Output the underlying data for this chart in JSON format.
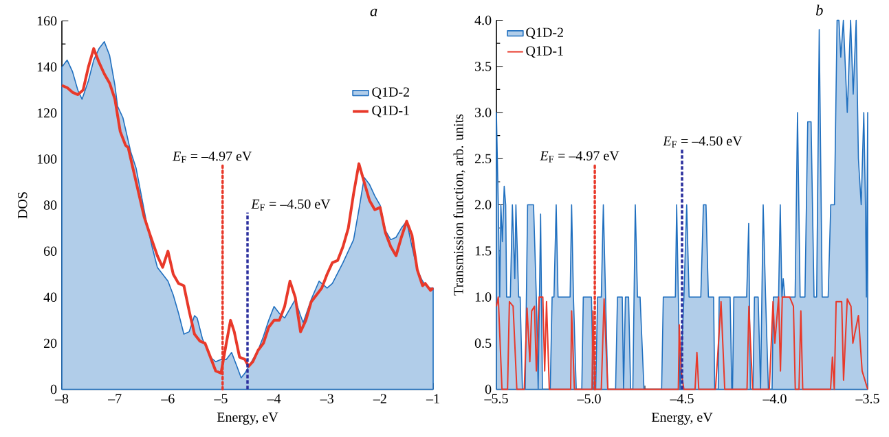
{
  "chart_data": [
    {
      "type": "line",
      "xlabel": "Energy, eV",
      "ylabel": "DOS",
      "annotations": [
        "a"
      ],
      "legend": "top right",
      "xlim": [
        -8,
        -1
      ],
      "ylim": [
        0,
        160
      ],
      "xticks": [
        {
          "value": -8,
          "label": "–8"
        },
        {
          "value": -7,
          "label": "–7"
        },
        {
          "value": -6,
          "label": "–6"
        },
        {
          "value": -5,
          "label": "–5"
        },
        {
          "value": -4,
          "label": "–4"
        },
        {
          "value": -3,
          "label": "–3"
        },
        {
          "value": -2,
          "label": "–2"
        },
        {
          "value": -1,
          "label": "–1"
        }
      ],
      "yticks": [
        0,
        20,
        40,
        60,
        80,
        100,
        120,
        140,
        160
      ],
      "series": [
        {
          "name": "Q1D-2",
          "type": "area",
          "color": "#1f6fbf",
          "x": [
            -8,
            -7.9,
            -7.8,
            -7.7,
            -7.62,
            -7.5,
            -7.4,
            -7.3,
            -7.2,
            -7.1,
            -7,
            -6.95,
            -6.85,
            -6.7,
            -6.6,
            -6.5,
            -6.4,
            -6.3,
            -6.2,
            -6.0,
            -5.9,
            -5.8,
            -5.7,
            -5.6,
            -5.5,
            -5.45,
            -5.35,
            -5.2,
            -5.1,
            -5.0,
            -4.9,
            -4.8,
            -4.7,
            -4.62,
            -4.55,
            -4.45,
            -4.3,
            -4.2,
            -4.1,
            -4.0,
            -3.9,
            -3.8,
            -3.7,
            -3.6,
            -3.5,
            -3.45,
            -3.3,
            -3.15,
            -3.0,
            -2.9,
            -2.7,
            -2.6,
            -2.5,
            -2.4,
            -2.3,
            -2.2,
            -2.1,
            -2.0,
            -1.9,
            -1.8,
            -1.7,
            -1.6,
            -1.5,
            -1.4,
            -1.3,
            -1.2,
            -1.1,
            -1.0
          ],
          "values": [
            140,
            143,
            138,
            130,
            126,
            134,
            143,
            148,
            151,
            145,
            132,
            123,
            118,
            103,
            96,
            84,
            72,
            62,
            53,
            47,
            41,
            33,
            24,
            25,
            32,
            31,
            22,
            14,
            12,
            13,
            13,
            16,
            10,
            5,
            7,
            11,
            17,
            23,
            30,
            36,
            33,
            31,
            35,
            39,
            32,
            29,
            39,
            47,
            44,
            46,
            55,
            60,
            65,
            78,
            92,
            89,
            84,
            80,
            69,
            65,
            66,
            70,
            73,
            62,
            52,
            47,
            44,
            44
          ]
        },
        {
          "name": "Q1D-1",
          "type": "line",
          "color": "#e8392a",
          "x": [
            -8,
            -7.9,
            -7.8,
            -7.7,
            -7.6,
            -7.5,
            -7.4,
            -7.3,
            -7.2,
            -7.1,
            -7.0,
            -6.9,
            -6.8,
            -6.75,
            -6.65,
            -6.55,
            -6.45,
            -6.35,
            -6.2,
            -6.1,
            -6.0,
            -5.9,
            -5.8,
            -5.7,
            -5.6,
            -5.5,
            -5.4,
            -5.3,
            -5.2,
            -5.1,
            -5.0,
            -4.9,
            -4.82,
            -4.75,
            -4.65,
            -4.55,
            -4.48,
            -4.4,
            -4.3,
            -4.2,
            -4.1,
            -4.0,
            -3.9,
            -3.8,
            -3.7,
            -3.6,
            -3.5,
            -3.4,
            -3.3,
            -3.2,
            -3.1,
            -3.0,
            -2.9,
            -2.8,
            -2.7,
            -2.6,
            -2.5,
            -2.4,
            -2.3,
            -2.2,
            -2.1,
            -2.0,
            -1.9,
            -1.8,
            -1.7,
            -1.6,
            -1.5,
            -1.4,
            -1.3,
            -1.2,
            -1.15,
            -1.05,
            -1.0
          ],
          "values": [
            132,
            131,
            129,
            128,
            130,
            140,
            148,
            142,
            137,
            133,
            126,
            112,
            106,
            105,
            95,
            85,
            75,
            68,
            58,
            53,
            60,
            50,
            46,
            45,
            34,
            24,
            21,
            20,
            14,
            8,
            7,
            20,
            30,
            25,
            14,
            13,
            10,
            12,
            17,
            20,
            27,
            30,
            30,
            36,
            47,
            40,
            25,
            30,
            38,
            41,
            44,
            50,
            55,
            56,
            62,
            70,
            85,
            98,
            90,
            82,
            78,
            79,
            68,
            62,
            58,
            66,
            73,
            67,
            52,
            45,
            46,
            43,
            44
          ]
        }
      ],
      "ref_lines": [
        {
          "axis": "x",
          "value": -4.97,
          "label": "*E*$_{F}$ = –4.97 eV",
          "color": "#e8392a",
          "line_style": "dotted"
        },
        {
          "axis": "x",
          "value": -4.5,
          "label": "*E*$_{F}$ = –4.50 eV",
          "color": "#2b2f9e",
          "line_style": "dashed"
        }
      ]
    },
    {
      "type": "line",
      "xlabel": "Energy, eV",
      "ylabel": "Transmission function, arb. units",
      "annotations": [
        "b"
      ],
      "legend": "top left",
      "xlim": [
        -5.5,
        -3.5
      ],
      "ylim": [
        0,
        4
      ],
      "xticks": [
        {
          "value": -5.5,
          "label": "–5.5"
        },
        {
          "value": -5.0,
          "label": "–5.0"
        },
        {
          "value": -4.5,
          "label": "–4.5"
        },
        {
          "value": -4.0,
          "label": "–4.0"
        },
        {
          "value": -3.5,
          "label": "–3.5"
        }
      ],
      "yticks": [
        0,
        0.5,
        {
          "value": 1,
          "label": "1.0"
        },
        1.5,
        {
          "value": 2,
          "label": "2.0"
        },
        2.5,
        {
          "value": 3,
          "label": "3.0"
        },
        3.5,
        {
          "value": 4,
          "label": "4.0"
        }
      ],
      "series": [
        {
          "name": "Q1D-2",
          "type": "area",
          "color": "#1f6fbf",
          "x": [
            -5.5,
            -5.49,
            -5.482,
            -5.476,
            -5.468,
            -5.458,
            -5.45,
            -5.445,
            -5.425,
            -5.414,
            -5.401,
            -5.395,
            -5.38,
            -5.372,
            -5.36,
            -5.345,
            -5.332,
            -5.3,
            -5.285,
            -5.275,
            -5.262,
            -5.252,
            -5.21,
            -5.2,
            -5.19,
            -5.178,
            -5.168,
            -5.103,
            -5.095,
            -5.085,
            -5.07,
            -5.04,
            -5.032,
            -4.988,
            -4.978,
            -4.965,
            -4.955,
            -4.935,
            -4.924,
            -4.912,
            -4.9,
            -4.858,
            -4.848,
            -4.822,
            -4.815,
            -4.805,
            -4.788,
            -4.777,
            -4.765,
            -4.752,
            -4.74,
            -4.726,
            -4.705,
            -4.61,
            -4.601,
            -4.536,
            -4.529,
            -4.52,
            -4.511,
            -4.49,
            -4.475,
            -4.462,
            -4.399,
            -4.385,
            -4.371,
            -4.358,
            -4.33,
            -4.324,
            -4.305,
            -4.3,
            -4.241,
            -4.232,
            -4.228,
            -4.221,
            -4.152,
            -4.141,
            -4.132,
            -4.118,
            -4.11,
            -4.09,
            -4.077,
            -4.063,
            -4.05,
            -4.035,
            -4.015,
            -4.008,
            -3.98,
            -3.971,
            -3.962,
            -3.955,
            -3.946,
            -3.891,
            -3.878,
            -3.864,
            -3.838,
            -3.823,
            -3.805,
            -3.789,
            -3.775,
            -3.761,
            -3.745,
            -3.713,
            -3.699,
            -3.679,
            -3.665,
            -3.655,
            -3.645,
            -3.631,
            -3.61,
            -3.592,
            -3.578,
            -3.562,
            -3.55,
            -3.535,
            -3.521,
            -3.512,
            -3.507,
            -3.5
          ],
          "values": [
            3.0,
            2.0,
            1.0,
            2.0,
            1.6,
            2.2,
            2.0,
            1.0,
            1.0,
            2.0,
            1.2,
            2.0,
            1.0,
            1.0,
            0,
            0,
            2.0,
            2.0,
            1.0,
            0,
            1.9,
            0,
            0,
            1.0,
            1.0,
            2.0,
            1.0,
            1.0,
            2.0,
            1.0,
            0,
            0,
            1.0,
            1.0,
            0,
            0,
            1.0,
            1.0,
            2.0,
            1.0,
            0,
            0,
            1.0,
            1.0,
            0,
            1.0,
            1.0,
            0,
            0,
            2.0,
            1.0,
            1.0,
            0,
            0,
            1.0,
            1.0,
            2.0,
            1.0,
            0,
            1.0,
            2.0,
            1.0,
            1.0,
            2.0,
            2.0,
            1.0,
            1.0,
            0,
            0,
            1.0,
            1.0,
            0,
            0,
            1.0,
            1.0,
            1.8,
            0,
            0,
            1.0,
            1.0,
            0,
            2.0,
            1.0,
            0,
            0,
            1.0,
            1.0,
            2.0,
            1.0,
            1.2,
            1.0,
            1.0,
            3.0,
            1.0,
            1.0,
            2.9,
            2.9,
            1.0,
            1.0,
            3.9,
            1.0,
            1.0,
            2.0,
            2.0,
            4.0,
            4.0,
            3.6,
            4.0,
            3.0,
            4.0,
            3.2,
            4.0,
            2.5,
            2.0,
            3.0,
            2.0,
            1.0,
            3.0
          ]
        },
        {
          "name": "Q1D-1",
          "type": "line",
          "color": "#e8392a",
          "x": [
            -5.5,
            -5.49,
            -5.48,
            -5.47,
            -5.44,
            -5.43,
            -5.41,
            -5.39,
            -5.35,
            -5.335,
            -5.32,
            -5.31,
            -5.295,
            -5.285,
            -5.27,
            -5.25,
            -5.24,
            -5.23,
            -5.215,
            -5.1,
            -5.095,
            -5.08,
            -4.985,
            -4.98,
            -4.97,
            -4.935,
            -4.92,
            -4.9,
            -4.52,
            -4.515,
            -4.505,
            -4.49,
            -4.43,
            -4.42,
            -4.41,
            -4.32,
            -4.31,
            -4.29,
            -4.27,
            -4.15,
            -4.14,
            -4.12,
            -4.03,
            -4.01,
            -4.0,
            -3.98,
            -3.97,
            -3.96,
            -3.92,
            -3.9,
            -3.89,
            -3.87,
            -3.86,
            -3.85,
            -3.7,
            -3.69,
            -3.68,
            -3.67,
            -3.64,
            -3.63,
            -3.61,
            -3.59,
            -3.58,
            -3.55,
            -3.53,
            -3.5
          ],
          "values": [
            0.9,
            1.0,
            0.5,
            0,
            0,
            0.95,
            0.9,
            0,
            0,
            0.88,
            0.3,
            0.85,
            0.9,
            0.2,
            1.0,
            1.0,
            0.2,
            0.95,
            0,
            0,
            0.85,
            0,
            0,
            0.85,
            0,
            0,
            0.98,
            0,
            0,
            0.7,
            0.2,
            0,
            0,
            0.4,
            0,
            0,
            0.3,
            0.95,
            0,
            0,
            0.9,
            0,
            0,
            0.95,
            0.5,
            1.0,
            0.2,
            1.0,
            1.0,
            0.9,
            0,
            0,
            0.85,
            0,
            0,
            0.35,
            0,
            0.95,
            0.95,
            0.1,
            0.98,
            0.9,
            0.5,
            0.8,
            0.2,
            0
          ]
        }
      ],
      "ref_lines": [
        {
          "axis": "x",
          "value": -4.97,
          "label": "*E*$_{F}$ = –4.97 eV",
          "color": "#e8392a",
          "line_style": "dotted"
        },
        {
          "axis": "x",
          "value": -4.5,
          "label": "*E*$_{F}$ = –4.50 eV",
          "color": "#2b2f9e",
          "line_style": "dashed"
        }
      ]
    }
  ]
}
